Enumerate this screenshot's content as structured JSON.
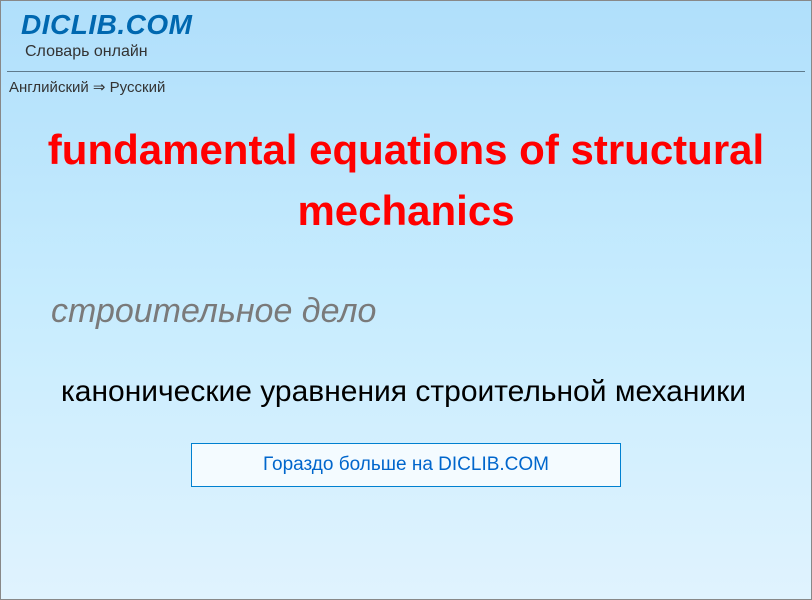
{
  "header": {
    "site_title": "DICLIB.COM",
    "site_subtitle": "Словарь онлайн",
    "breadcrumb": "Английский ⇒ Русский"
  },
  "entry": {
    "term": "fundamental equations of structural mechanics",
    "category": "строительное дело",
    "translation": "канонические уравнения строительной механики"
  },
  "footer": {
    "more_label": "Гораздо больше на DICLIB.COM"
  },
  "colors": {
    "bg_top": "#b0dffb",
    "bg_mid": "#c7ecfe",
    "bg_bottom": "#e0f3fe",
    "title_color": "#0068b0",
    "term_color": "#ff0000",
    "category_color": "#7a7a7a",
    "link_color": "#0066cc",
    "divider_color": "#5f7a8c",
    "footer_border": "#0080d0",
    "footer_bg": "#f4fbff"
  },
  "typography": {
    "site_title_fontsize": 28,
    "subtitle_fontsize": 16,
    "breadcrumb_fontsize": 15,
    "term_fontsize": 42,
    "category_fontsize": 34,
    "translation_fontsize": 30,
    "footer_fontsize": 19
  }
}
